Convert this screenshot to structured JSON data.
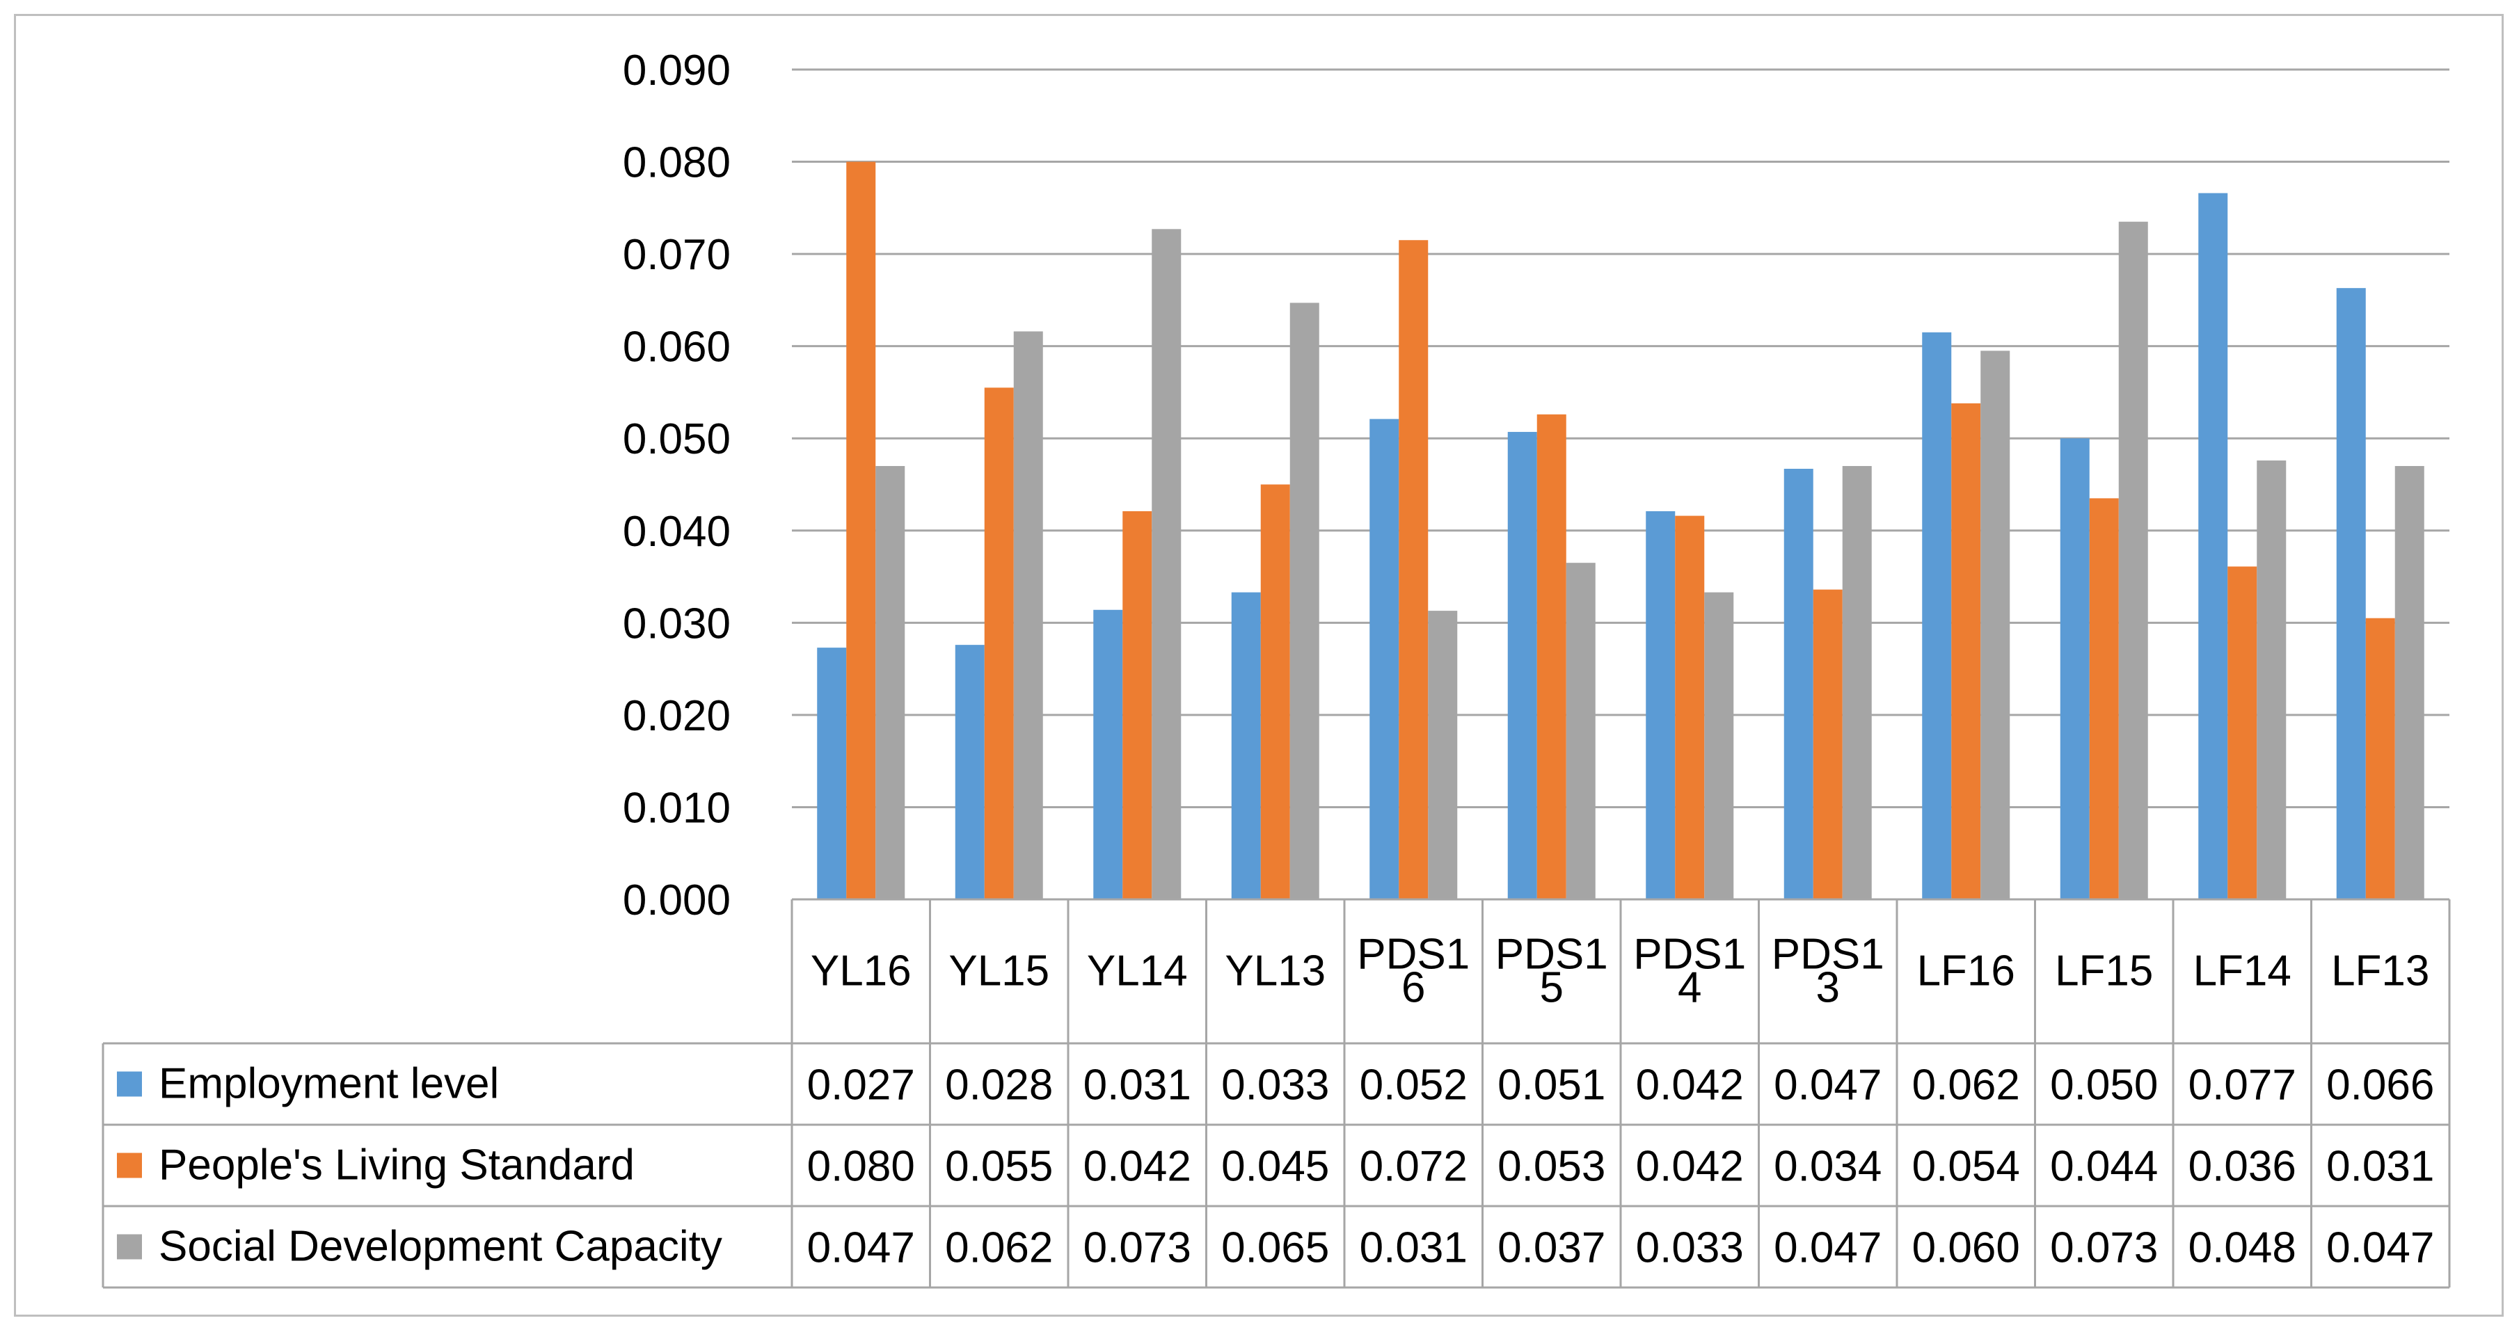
{
  "chart_data": {
    "type": "bar",
    "title": "",
    "xlabel": "",
    "ylabel": "",
    "ylim": [
      0,
      0.09
    ],
    "yticks": [
      "0.000",
      "0.010",
      "0.020",
      "0.030",
      "0.040",
      "0.050",
      "0.060",
      "0.070",
      "0.080",
      "0.090"
    ],
    "grid": true,
    "categories": [
      [
        "YL16"
      ],
      [
        "YL15"
      ],
      [
        "YL14"
      ],
      [
        "YL13"
      ],
      [
        "PDS1",
        "6"
      ],
      [
        "PDS1",
        "5"
      ],
      [
        "PDS1",
        "4"
      ],
      [
        "PDS1",
        "3"
      ],
      [
        "LF16"
      ],
      [
        "LF15"
      ],
      [
        "LF14"
      ],
      [
        "LF13"
      ]
    ],
    "series": [
      {
        "name": "Employment level",
        "color": "#5b9bd5",
        "values": [
          0.0273,
          0.0276,
          0.0314,
          0.0333,
          0.0521,
          0.0507,
          0.0421,
          0.0467,
          0.0615,
          0.05,
          0.0766,
          0.0663
        ],
        "labels": [
          "0.027",
          "0.028",
          "0.031",
          "0.033",
          "0.052",
          "0.051",
          "0.042",
          "0.047",
          "0.062",
          "0.050",
          "0.077",
          "0.066"
        ]
      },
      {
        "name": "People's Living Standard",
        "color": "#ed7d31",
        "values": [
          0.08,
          0.0555,
          0.0421,
          0.045,
          0.0715,
          0.0526,
          0.0416,
          0.0336,
          0.0538,
          0.0435,
          0.0361,
          0.0305
        ],
        "labels": [
          "0.080",
          "0.055",
          "0.042",
          "0.045",
          "0.072",
          "0.053",
          "0.042",
          "0.034",
          "0.054",
          "0.044",
          "0.036",
          "0.031"
        ]
      },
      {
        "name": "Social Development Capacity",
        "color": "#a5a5a5",
        "values": [
          0.047,
          0.0616,
          0.0727,
          0.0647,
          0.0313,
          0.0365,
          0.0333,
          0.047,
          0.0595,
          0.0735,
          0.0476,
          0.047
        ],
        "labels": [
          "0.047",
          "0.062",
          "0.073",
          "0.065",
          "0.031",
          "0.037",
          "0.033",
          "0.047",
          "0.060",
          "0.073",
          "0.048",
          "0.047"
        ]
      }
    ],
    "data_table": true
  }
}
